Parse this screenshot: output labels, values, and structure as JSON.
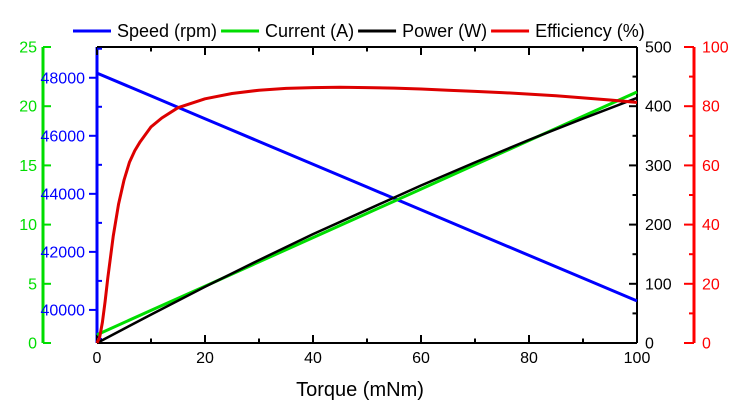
{
  "figure": {
    "background": "#ffffff"
  },
  "legend": {
    "items": [
      {
        "label": "Speed (rpm)",
        "color": "#0000ff"
      },
      {
        "label": "Current (A)",
        "color": "#00dd00"
      },
      {
        "label": "Power (W)",
        "color": "#000000"
      },
      {
        "label": "Efficiency (%)",
        "color": "#ee0000"
      }
    ]
  },
  "chart_data": {
    "type": "line",
    "title": "",
    "xlabel": "Torque (mNm)",
    "grid": false,
    "legend_position": "top",
    "axes": {
      "x": {
        "label": "Torque (mNm)",
        "min": 0,
        "max": 100,
        "majors": [
          0,
          20,
          40,
          60,
          80,
          100
        ],
        "minors": [
          10,
          30,
          50,
          70,
          90
        ],
        "color": "#000000"
      },
      "speed": {
        "label": "Speed (rpm)",
        "min": 38860,
        "max": 49060,
        "majors": [
          40000,
          42000,
          44000,
          46000,
          48000
        ],
        "minors": [
          39000,
          41000,
          43000,
          45000,
          47000,
          49000
        ],
        "color": "#0000ff",
        "side": "left-inner"
      },
      "current": {
        "label": "Current (A)",
        "min": 0,
        "max": 25,
        "majors": [
          0,
          5,
          10,
          15,
          20,
          25
        ],
        "minors": [],
        "color": "#00dd00",
        "side": "left-outer"
      },
      "power": {
        "label": "Power (W)",
        "min": 0,
        "max": 500,
        "majors": [
          0,
          100,
          200,
          300,
          400,
          500
        ],
        "minors": [
          50,
          150,
          250,
          350,
          450
        ],
        "color": "#000000",
        "side": "right-inner"
      },
      "efficiency": {
        "label": "Efficiency (%)",
        "min": 0,
        "max": 100,
        "majors": [
          0,
          20,
          40,
          60,
          80,
          100
        ],
        "minors": [
          10,
          30,
          50,
          70,
          90
        ],
        "color": "#ff0000",
        "side": "right-outer"
      }
    },
    "series": [
      {
        "name": "Speed (rpm)",
        "axis": "speed",
        "color": "#0000ff",
        "width": 3,
        "x": [
          0,
          10,
          20,
          30,
          40,
          50,
          60,
          70,
          80,
          90,
          100
        ],
        "y": [
          48160,
          47375,
          46590,
          45805,
          45020,
          44235,
          43450,
          42665,
          41880,
          41095,
          40310
        ]
      },
      {
        "name": "Current (A)",
        "axis": "current",
        "color": "#00dd00",
        "width": 3,
        "x": [
          0,
          10,
          20,
          30,
          40,
          50,
          60,
          70,
          80,
          90,
          100
        ],
        "y": [
          0.7,
          2.75,
          4.8,
          6.85,
          8.9,
          10.95,
          13.0,
          15.05,
          17.1,
          19.15,
          21.2
        ]
      },
      {
        "name": "Power (W)",
        "axis": "power",
        "color": "#000000",
        "width": 2.5,
        "x": [
          0,
          10,
          20,
          30,
          40,
          50,
          60,
          70,
          80,
          90,
          100
        ],
        "y": [
          0,
          48,
          95,
          140,
          184,
          225,
          266,
          305,
          343,
          379,
          414
        ]
      },
      {
        "name": "Efficiency (%)",
        "axis": "efficiency",
        "color": "#dd0000",
        "width": 3,
        "x": [
          0,
          0.5,
          1,
          1.5,
          2,
          2.5,
          3,
          4,
          5,
          6,
          7,
          8,
          10,
          12,
          15,
          20,
          25,
          30,
          35,
          40,
          45,
          50,
          55,
          60,
          65,
          70,
          75,
          80,
          85,
          90,
          95,
          100
        ],
        "y": [
          0,
          2,
          7,
          14,
          22,
          29,
          36,
          47,
          55,
          61,
          65,
          68,
          73,
          76,
          79.5,
          82.5,
          84.3,
          85.4,
          86.0,
          86.3,
          86.4,
          86.3,
          86.1,
          85.8,
          85.4,
          85.0,
          84.6,
          84.1,
          83.5,
          82.8,
          82.1,
          81.3
        ]
      }
    ]
  }
}
